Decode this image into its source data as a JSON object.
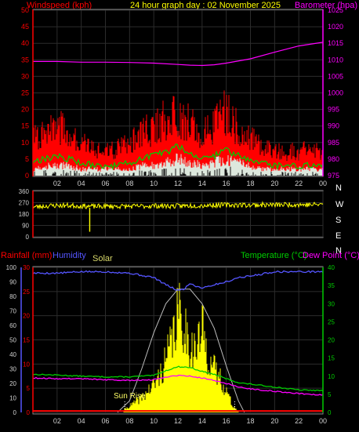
{
  "header": {
    "left": "Windspeed (kph)",
    "center": "24 hour graph day : 02 November 2025",
    "right": "Barometer (hpa)"
  },
  "x_ticks": [
    "02",
    "04",
    "06",
    "08",
    "10",
    "12",
    "14",
    "16",
    "18",
    "20",
    "22",
    "00"
  ],
  "colors": {
    "wind_axis": "#ff0000",
    "baro_axis": "#ff00ff",
    "title": "#ffff00",
    "wind": "#ff0000",
    "gust": "#00cc00",
    "direction": "#ffff00",
    "rain": "#ff0000",
    "humidity": "#5555ff",
    "solar": "#ffff00",
    "temperature": "#00cc00",
    "dewpoint": "#ff00ff"
  },
  "chart_data": [
    {
      "type": "line",
      "title": "24 hour graph day : 02 November 2025",
      "x_unit": "hour",
      "xlim": [
        0,
        24
      ],
      "y_left": {
        "label": "Windspeed (kph)",
        "ticks": [
          "0",
          "5",
          "10",
          "15",
          "20",
          "25",
          "30",
          "35",
          "40",
          "45",
          "50"
        ],
        "ylim": [
          0,
          50
        ]
      },
      "y_right": {
        "label": "Barometer (hpa)",
        "ticks": [
          "975",
          "980",
          "985",
          "990",
          "995",
          "1000",
          "1005",
          "1010",
          "1015",
          "1020",
          "1025"
        ],
        "ylim": [
          975,
          1025
        ]
      },
      "series": [
        {
          "role": "wind_max",
          "axis": "left",
          "x": [
            0,
            1,
            2,
            3,
            4,
            5,
            6,
            7,
            8,
            9,
            10,
            11,
            12,
            13,
            14,
            15,
            16,
            17,
            18,
            19,
            20,
            21,
            22,
            23,
            24
          ],
          "values": [
            12,
            14,
            16,
            15,
            11,
            9,
            8,
            9,
            11,
            14,
            16,
            19,
            20,
            17,
            14,
            17,
            22,
            15,
            12,
            10,
            9,
            8,
            8,
            9,
            8
          ]
        },
        {
          "role": "gust",
          "axis": "left",
          "x": [
            0,
            1,
            2,
            3,
            4,
            5,
            6,
            7,
            8,
            9,
            10,
            11,
            12,
            13,
            14,
            15,
            16,
            17,
            18,
            19,
            20,
            21,
            22,
            23,
            24
          ],
          "values": [
            4,
            5,
            6,
            5,
            4,
            3,
            3,
            3,
            4,
            5,
            6,
            7,
            9,
            7,
            5,
            6,
            8,
            6,
            5,
            4,
            3,
            3,
            3,
            3,
            3
          ]
        },
        {
          "role": "wind_low",
          "axis": "left",
          "x": [
            0,
            1,
            2,
            3,
            4,
            5,
            6,
            7,
            8,
            9,
            10,
            11,
            12,
            13,
            14,
            15,
            16,
            17,
            18,
            19,
            20,
            21,
            22,
            23,
            24
          ],
          "values": [
            2,
            3,
            3,
            3,
            2,
            2,
            2,
            2,
            2,
            3,
            3,
            4,
            5,
            4,
            3,
            4,
            5,
            4,
            3,
            2,
            2,
            2,
            2,
            2,
            2
          ]
        },
        {
          "role": "barometer",
          "axis": "right",
          "x": [
            0,
            2,
            4,
            6,
            8,
            10,
            12,
            13,
            14,
            15,
            16,
            18,
            20,
            22,
            24
          ],
          "values": [
            1009.5,
            1009.5,
            1009.3,
            1009.3,
            1009.2,
            1009.0,
            1008.6,
            1008.4,
            1008.3,
            1008.5,
            1009.0,
            1010.3,
            1012.3,
            1014.2,
            1015.3
          ]
        }
      ]
    },
    {
      "type": "scatter",
      "x_unit": "hour",
      "xlim": [
        0,
        24
      ],
      "y": {
        "ticks": [
          "0",
          "90",
          "180",
          "270",
          "360"
        ],
        "ylim": [
          0,
          360
        ]
      },
      "compass_labels": [
        "N",
        "W",
        "S",
        "E",
        "N"
      ],
      "series": [
        {
          "role": "wind_direction",
          "x": [
            0,
            1,
            2,
            3,
            4,
            5,
            6,
            7,
            8,
            9,
            10,
            11,
            12,
            13,
            14,
            15,
            16,
            17,
            18,
            19,
            20,
            21,
            22,
            23,
            24
          ],
          "values": [
            235,
            243,
            248,
            247,
            244,
            240,
            241,
            242,
            240,
            242,
            246,
            244,
            243,
            247,
            248,
            251,
            252,
            252,
            251,
            253,
            252,
            255,
            255,
            253,
            258
          ]
        }
      ],
      "outliers": [
        {
          "x": 4.7,
          "y": 40
        }
      ]
    },
    {
      "type": "area",
      "x_unit": "hour",
      "xlim": [
        0,
        24
      ],
      "legend": [
        "Rainfall (mm)",
        "Humidity",
        "Solar",
        "Temperature (°C)",
        "Dew Point (°C)"
      ],
      "y_humidity": {
        "ticks": [
          "0",
          "10",
          "20",
          "30",
          "40",
          "50",
          "60",
          "70",
          "80",
          "90",
          "100"
        ],
        "ylim": [
          0,
          100
        ]
      },
      "y_rain": {
        "ticks": [
          "0",
          "5",
          "10",
          "15",
          "20",
          "25",
          "30"
        ],
        "ylim": [
          0,
          30
        ]
      },
      "y_temp": {
        "ticks": [
          "0",
          "5",
          "10",
          "15",
          "20",
          "25",
          "30",
          "35",
          "40"
        ],
        "ylim": [
          0,
          40
        ]
      },
      "annotation": "Sun Rise",
      "series": [
        {
          "role": "humidity",
          "name": "Humidity",
          "x": [
            0,
            2,
            4,
            6,
            8,
            10,
            11,
            12,
            12.5,
            13,
            13.5,
            14,
            15,
            16,
            17,
            18,
            20,
            22,
            24
          ],
          "values": [
            96,
            96,
            97,
            97,
            96,
            93,
            88,
            84,
            85,
            89,
            87,
            86,
            88,
            90,
            93,
            94,
            97,
            97,
            97
          ]
        },
        {
          "role": "temperature",
          "name": "Temperature (°C)",
          "x": [
            0,
            2,
            4,
            6,
            8,
            10,
            11,
            12,
            13,
            14,
            15,
            16,
            17,
            18,
            20,
            22,
            24
          ],
          "values": [
            10.5,
            10.3,
            10,
            9.8,
            9.8,
            10.2,
            11.5,
            12.6,
            12.4,
            11.3,
            10.5,
            9.3,
            8.2,
            7.8,
            7.0,
            6.2,
            6.0
          ]
        },
        {
          "role": "dewpoint",
          "name": "Dew Point (°C)",
          "x": [
            0,
            2,
            4,
            6,
            8,
            10,
            11,
            12,
            13,
            14,
            15,
            16,
            17,
            18,
            20,
            22,
            24
          ],
          "values": [
            9.5,
            9.3,
            9.3,
            9.0,
            8.8,
            9.0,
            9.8,
            10.2,
            10.0,
            9.5,
            8.8,
            8.0,
            7.0,
            6.5,
            5.8,
            5.2,
            4.8
          ]
        },
        {
          "role": "solar",
          "name": "Solar",
          "x": [
            7.5,
            8,
            9,
            10,
            10.5,
            11,
            11.5,
            12,
            12.5,
            13,
            13.5,
            14,
            14.5,
            15,
            15.5,
            16,
            16.5,
            17
          ],
          "values": [
            2,
            5,
            12,
            22,
            30,
            42,
            58,
            80,
            72,
            55,
            50,
            68,
            45,
            35,
            28,
            18,
            6,
            1
          ]
        },
        {
          "role": "solar_max",
          "name": "Solar",
          "x": [
            7,
            8,
            9,
            10,
            11,
            12,
            13,
            14,
            15,
            16,
            17,
            17.5
          ],
          "values": [
            0,
            8,
            30,
            55,
            75,
            85,
            85,
            75,
            58,
            32,
            8,
            0
          ]
        },
        {
          "role": "rainfall",
          "name": "Rainfall (mm)",
          "x": [
            0,
            24
          ],
          "values": [
            0.3,
            0.3
          ]
        }
      ]
    }
  ]
}
